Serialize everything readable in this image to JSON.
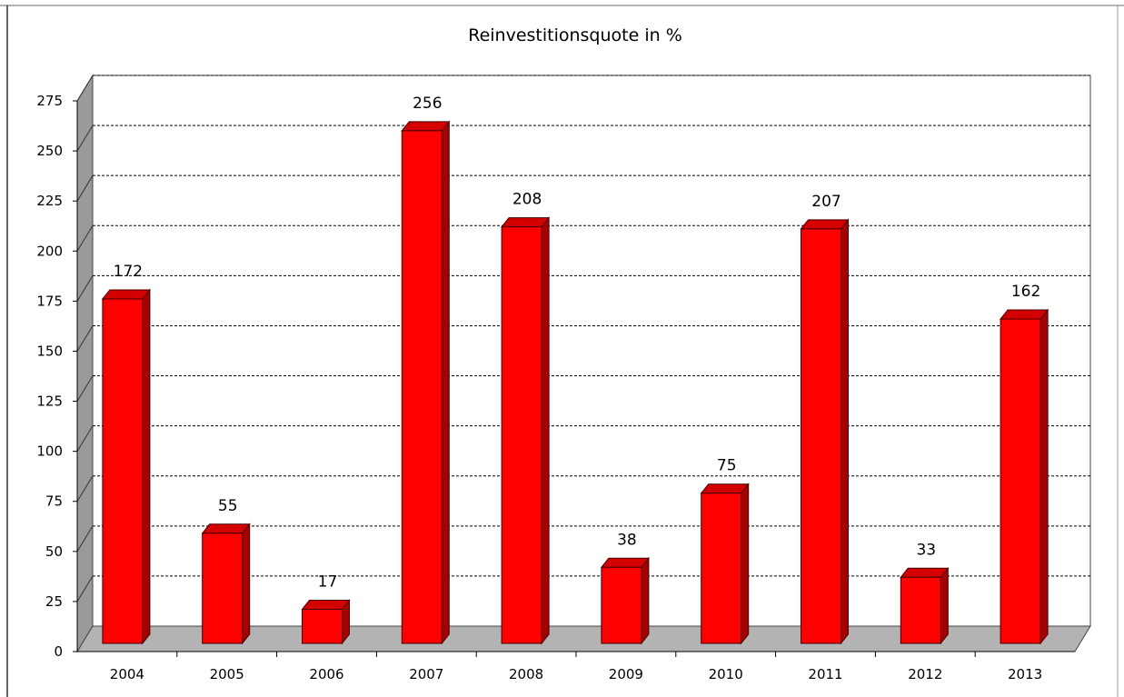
{
  "chart_data": {
    "type": "bar",
    "title": "Reinvestitionsquote in %",
    "categories": [
      "2004",
      "2005",
      "2006",
      "2007",
      "2008",
      "2009",
      "2010",
      "2011",
      "2012",
      "2013"
    ],
    "values": [
      172,
      55,
      17,
      256,
      208,
      38,
      75,
      207,
      33,
      162
    ],
    "ylim": [
      0,
      275
    ],
    "yticks": [
      0,
      25,
      50,
      75,
      100,
      125,
      150,
      175,
      200,
      225,
      250,
      275
    ],
    "grid": true,
    "three_d": true,
    "bar_color": "#ff0000",
    "bar_side_color": "#a80000",
    "bar_top_color": "#d40000",
    "floor_color": "#b3b3b3",
    "wall_color": "#9a9a9a"
  }
}
